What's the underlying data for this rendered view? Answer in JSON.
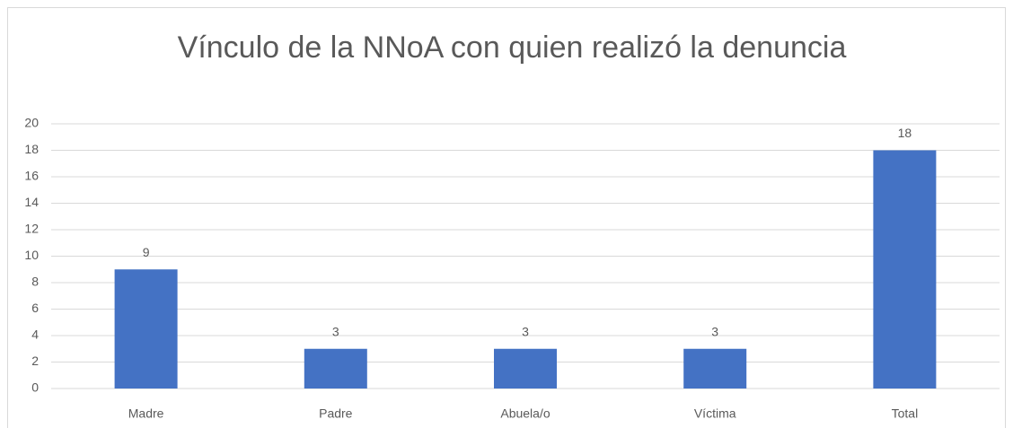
{
  "chart_data": {
    "type": "bar",
    "title": "Vínculo de la NNoA con quien realizó la denuncia",
    "categories": [
      "Madre",
      "Padre",
      "Abuela/o",
      "Víctima",
      "Total"
    ],
    "values": [
      9,
      3,
      3,
      3,
      18
    ],
    "color": "#4472c4",
    "ylim": [
      0,
      20
    ],
    "yticks": [
      0,
      2,
      4,
      6,
      8,
      10,
      12,
      14,
      16,
      18,
      20
    ],
    "grid": true
  }
}
